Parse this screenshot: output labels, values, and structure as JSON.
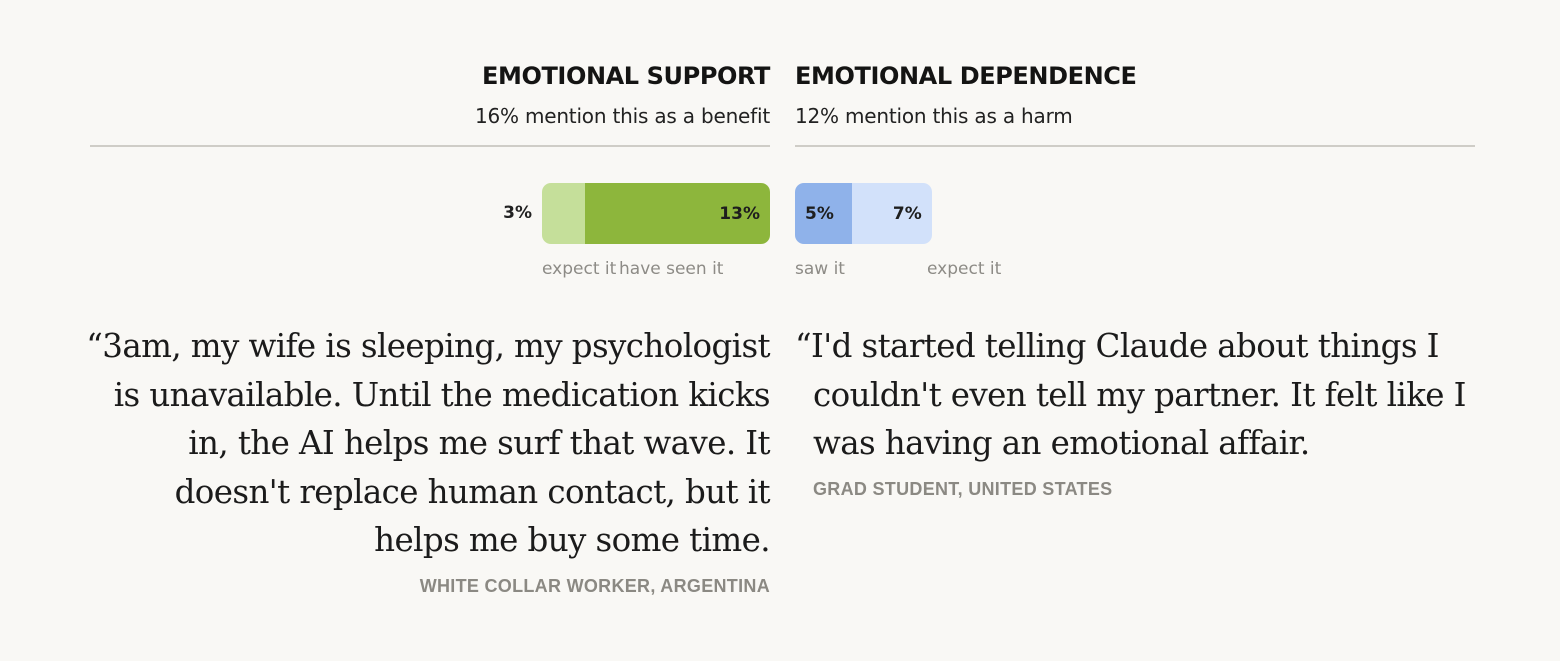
{
  "chart_data": [
    {
      "type": "bar",
      "title": "EMOTIONAL SUPPORT",
      "subtitle": "16% mention this as a benefit",
      "series": [
        {
          "name": "expect it",
          "value": 3,
          "label": "3%",
          "color": "#c5df9a"
        },
        {
          "name": "have seen it",
          "value": 13,
          "label": "13%",
          "color": "#8db63c"
        }
      ],
      "quote": "“3am, my wife is sleeping, my psychologist is unavailable. Until the medication kicks in, the AI helps me surf that wave. It doesn't replace human contact, but it helps me buy some time.",
      "attribution": "WHITE COLLAR WORKER, ARGENTINA"
    },
    {
      "type": "bar",
      "title": "EMOTIONAL DEPENDENCE",
      "subtitle": "12% mention this as a harm",
      "series": [
        {
          "name": "saw it",
          "value": 5,
          "label": "5%",
          "color": "#8fb2ea"
        },
        {
          "name": "expect it",
          "value": 7,
          "label": "7%",
          "color": "#d2e1fa"
        }
      ],
      "quote": "“I'd started telling Claude about things I couldn't even tell my partner. It felt like I was having an emotional affair.",
      "attribution": "GRAD STUDENT, UNITED STATES"
    }
  ]
}
